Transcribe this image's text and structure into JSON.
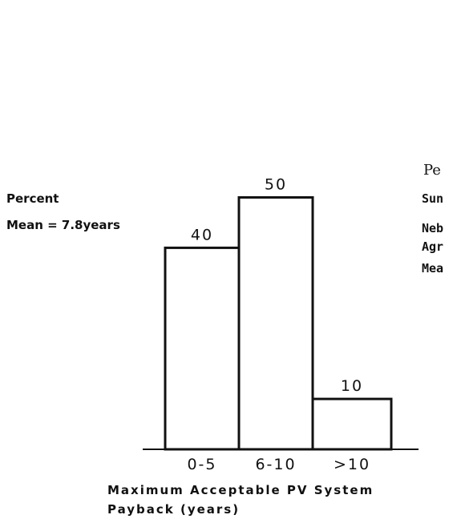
{
  "chart_data": {
    "type": "bar",
    "categories": [
      "0-5",
      "6-10",
      ">10"
    ],
    "values": [
      40,
      50,
      10
    ],
    "annotations": [
      "Percent",
      "Mean = 7.8years"
    ],
    "x_label": [
      "Maximum Acceptable PV System",
      "Payback (years)"
    ],
    "side_text": [
      "Pe",
      "Sun",
      "Neb",
      "Agr",
      "Mea"
    ],
    "color": "#ffffff"
  }
}
